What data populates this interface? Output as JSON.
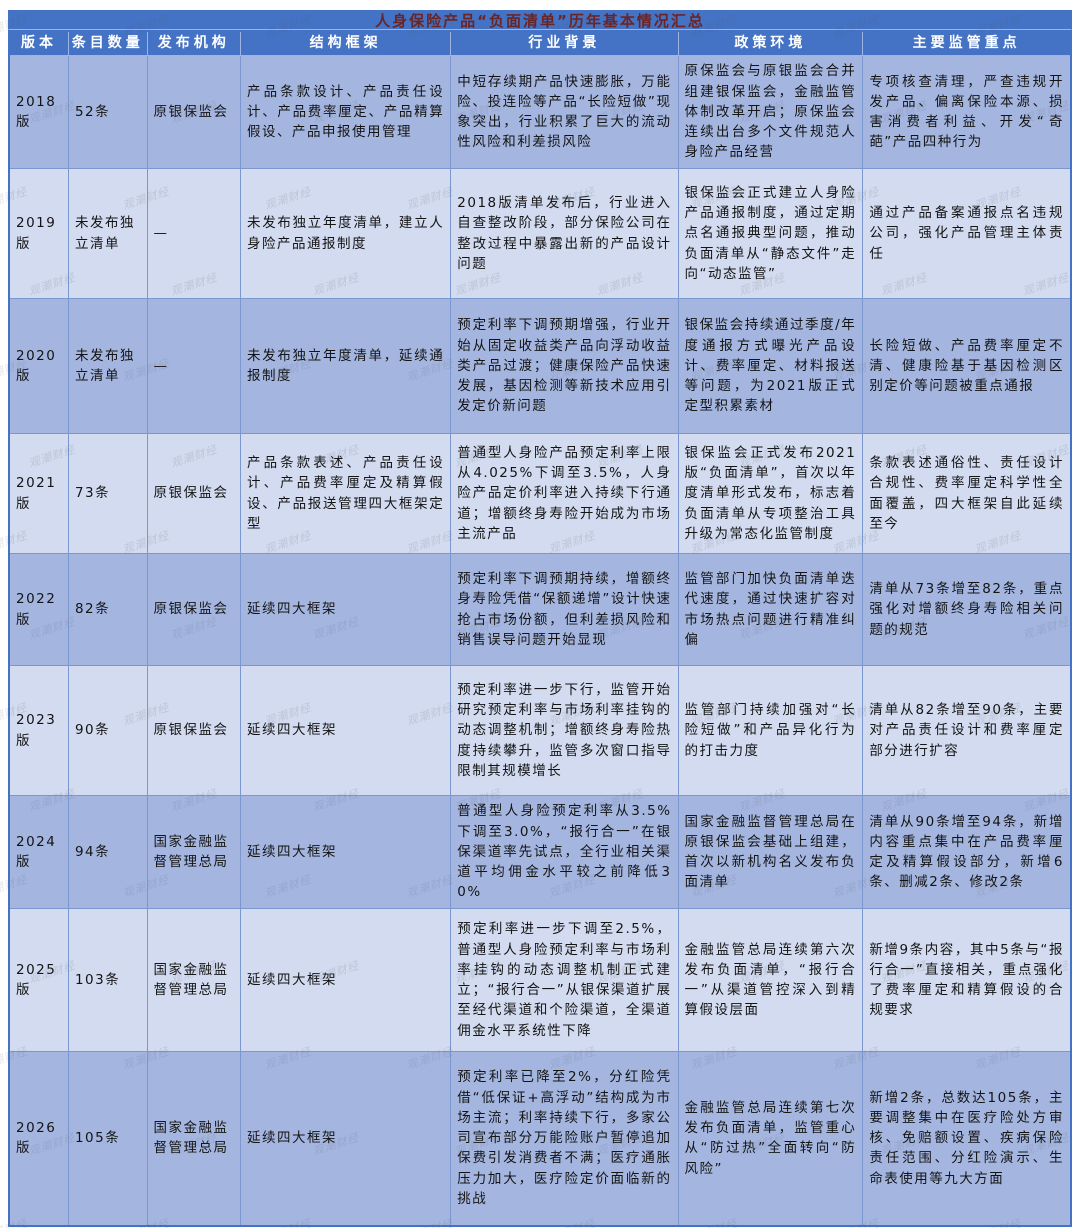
{
  "page": {
    "title": "人身保险产品“负面清单”历年基本情况汇总",
    "watermark": "观潮财经"
  },
  "colors": {
    "header_bg": "#4472c4",
    "title_text": "#6b2424",
    "row_dark": "#a4b6e0",
    "row_light": "#d2dbef",
    "cell_border": "#7b97cf"
  },
  "table": {
    "columns": [
      "版本",
      "条目数量",
      "发布机构",
      "结构框架",
      "行业背景",
      "政策环境",
      "主要监管重点"
    ],
    "rows": [
      {
        "version": "2018版",
        "count": "52条",
        "agency": "原银保监会",
        "framework": "产品条款设计、产品责任设计、产品费率厘定、产品精算假设、产品申报使用管理",
        "industry": "中短存续期产品快速膨胀，万能险、投连险等产品“长险短做”现象突出，行业积累了巨大的流动性风险和利差损风险",
        "policy": "原保监会与原银监会合并组建银保监会，金融监管体制改革开启；原保监会连续出台多个文件规范人身险产品经营",
        "focus": "专项核查清理，严查违规开发产品、偏离保险本源、损害消费者利益、开发“奇葩”产品四种行为"
      },
      {
        "version": "2019版",
        "count": "未发布独立清单",
        "agency": "—",
        "framework": "未发布独立年度清单，建立人身险产品通报制度",
        "industry": "2018版清单发布后，行业进入自查整改阶段，部分保险公司在整改过程中暴露出新的产品设计问题",
        "policy": "银保监会正式建立人身险产品通报制度，通过定期点名通报典型问题，推动负面清单从“静态文件”走向“动态监管”",
        "focus": "通过产品备案通报点名违规公司，强化产品管理主体责任"
      },
      {
        "version": "2020版",
        "count": "未发布独立清单",
        "agency": "—",
        "framework": "未发布独立年度清单，延续通报制度",
        "industry": "预定利率下调预期增强，行业开始从固定收益类产品向浮动收益类产品过渡；健康保险产品快速发展，基因检测等新技术应用引发定价新问题",
        "policy": "银保监会持续通过季度/年度通报方式曝光产品设计、费率厘定、材料报送等问题，为2021版正式定型积累素材",
        "focus": "长险短做、产品费率厘定不清、健康险基于基因检测区别定价等问题被重点通报"
      },
      {
        "version": "2021版",
        "count": "73条",
        "agency": "原银保监会",
        "framework": "产品条款表述、产品责任设计、产品费率厘定及精算假设、产品报送管理四大框架定型",
        "industry": "普通型人身险产品预定利率上限从4.025%下调至3.5%，人身险产品定价利率进入持续下行通道；增额终身寿险开始成为市场主流产品",
        "policy": "银保监会正式发布2021版“负面清单”，首次以年度清单形式发布，标志着负面清单从专项整治工具升级为常态化监管制度",
        "focus": "条款表述通俗性、责任设计合规性、费率厘定科学性全面覆盖，四大框架自此延续至今"
      },
      {
        "version": "2022版",
        "count": "82条",
        "agency": "原银保监会",
        "framework": "延续四大框架",
        "industry": "预定利率下调预期持续，增额终身寿险凭借“保额递增”设计快速抢占市场份额，但利差损风险和销售误导问题开始显现",
        "policy": "监管部门加快负面清单迭代速度，通过快速扩容对市场热点问题进行精准纠偏",
        "focus": "清单从73条增至82条，重点强化对增额终身寿险相关问题的规范"
      },
      {
        "version": "2023版",
        "count": "90条",
        "agency": "原银保监会",
        "framework": "延续四大框架",
        "industry": "预定利率进一步下行，监管开始研究预定利率与市场利率挂钩的动态调整机制；增额终身寿险热度持续攀升，监管多次窗口指导限制其规模增长",
        "policy": "监管部门持续加强对“长险短做”和产品异化行为的打击力度",
        "focus": "清单从82条增至90条，主要对产品责任设计和费率厘定部分进行扩容"
      },
      {
        "version": "2024版",
        "count": "94条",
        "agency": "国家金融监督管理总局",
        "framework": "延续四大框架",
        "industry": "普通型人身险预定利率从3.5%下调至3.0%，“报行合一”在银保渠道率先试点，全行业相关渠道平均佣金水平较之前降低30%",
        "policy": "国家金融监督管理总局在原银保监会基础上组建，首次以新机构名义发布负面清单",
        "focus": "清单从90条增至94条，新增内容重点集中在产品费率厘定及精算假设部分，新增6条、删减2条、修改2条"
      },
      {
        "version": "2025版",
        "count": "103条",
        "agency": "国家金融监督管理总局",
        "framework": "延续四大框架",
        "industry": "预定利率进一步下调至2.5%，普通型人身险预定利率与市场利率挂钩的动态调整机制正式建立；“报行合一”从银保渠道扩展至经代渠道和个险渠道，全渠道佣金水平系统性下降",
        "policy": "金融监管总局连续第六次发布负面清单，“报行合一”从渠道管控深入到精算假设层面",
        "focus": "新增9条内容，其中5条与“报行合一”直接相关，重点强化了费率厘定和精算假设的合规要求"
      },
      {
        "version": "2026版",
        "count": "105条",
        "agency": "国家金融监督管理总局",
        "framework": "延续四大框架",
        "industry": "预定利率已降至2%，分红险凭借“低保证+高浮动”结构成为市场主流；利率持续下行，多家公司宣布部分万能险账户暂停追加保费引发消费者不满；医疗通胀压力加大，医疗险定价面临新的挑战",
        "policy": "金融监管总局连续第七次发布负面清单，监管重心从“防过热”全面转向“防风险”",
        "focus": "新增2条，总数达105条，主要调整集中在医疗险处方审核、免赔额设置、疾病保险责任范围、分红险演示、生命表使用等九大方面"
      }
    ]
  }
}
